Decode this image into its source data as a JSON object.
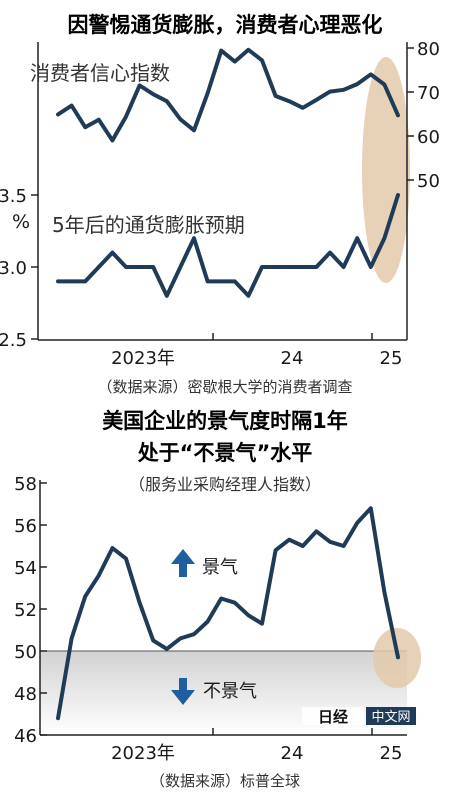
{
  "colors": {
    "line": "#1f3b57",
    "highlight": "#e3c9aa",
    "arrow": "#1f5f9f",
    "shade_top": "#d4d4d4",
    "watermark_bg": "#1f3b57"
  },
  "chart1": {
    "title": "因警惕通货膨胀，消费者心理恶化",
    "source": "（数据来源）密歇根大学的消费者调查",
    "x_labels": [
      "2023年",
      "24",
      "25"
    ]
  },
  "chart2": {
    "title_line1": "美国企业的景气度时隔1年",
    "title_line2": "处于“不景气”水平",
    "subtitle": "（服务业采购经理人指数）",
    "source": "（数据来源）标普全球",
    "x_labels": [
      "2023年",
      "24",
      "25"
    ],
    "up_label": "景气",
    "down_label": "不景气",
    "up_icon": "up-arrow-icon",
    "down_icon": "down-arrow-icon"
  },
  "watermark": {
    "logo_text": "日经",
    "label": "中文网"
  },
  "chart_data": [
    {
      "type": "line",
      "title": "因警惕通货膨胀，消费者心理恶化",
      "series": [
        {
          "name": "消费者信心指数",
          "axis": "right",
          "ylim": [
            50,
            80
          ],
          "ticks": [
            "80",
            "70",
            "60",
            "50"
          ],
          "values": [
            64.9,
            66.9,
            62.0,
            63.7,
            59.0,
            64.4,
            71.5,
            69.5,
            67.9,
            63.8,
            61.3,
            69.7,
            79.4,
            76.9,
            79.6,
            77.2,
            69.1,
            67.9,
            66.4,
            68.2,
            70.1,
            70.5,
            71.8,
            74.0,
            71.7,
            64.7
          ]
        },
        {
          "name": "5年后的通货膨胀预期",
          "axis": "left",
          "ylim": [
            2.5,
            3.5
          ],
          "ticks": [
            "3.5",
            "3.0",
            "2.5"
          ],
          "unit": "%",
          "values": [
            2.9,
            2.9,
            2.9,
            3.0,
            3.1,
            3.0,
            3.0,
            3.0,
            2.8,
            3.0,
            3.2,
            2.9,
            2.9,
            2.9,
            2.8,
            3.0,
            3.0,
            3.0,
            3.0,
            3.0,
            3.1,
            3.0,
            3.2,
            3.0,
            3.2,
            3.5
          ]
        }
      ],
      "x_labels": [
        "2023年",
        "24",
        "25"
      ]
    },
    {
      "type": "line",
      "title": "美国企业的景气度时隔1年处于“不景气”水平",
      "subtitle": "（服务业采购经理人指数）",
      "ylim": [
        46,
        58
      ],
      "ticks": [
        "58",
        "56",
        "54",
        "52",
        "50",
        "48",
        "46"
      ],
      "threshold": 50,
      "x_labels": [
        "2023年",
        "24",
        "25"
      ],
      "series": [
        {
          "name": "服务业采购经理人指数",
          "values": [
            46.8,
            50.6,
            52.6,
            53.6,
            54.9,
            54.4,
            52.3,
            50.5,
            50.1,
            50.6,
            50.8,
            51.4,
            52.5,
            52.3,
            51.7,
            51.3,
            54.8,
            55.3,
            55.0,
            55.7,
            55.2,
            55.0,
            56.1,
            56.8,
            52.8,
            49.7
          ]
        }
      ]
    }
  ]
}
